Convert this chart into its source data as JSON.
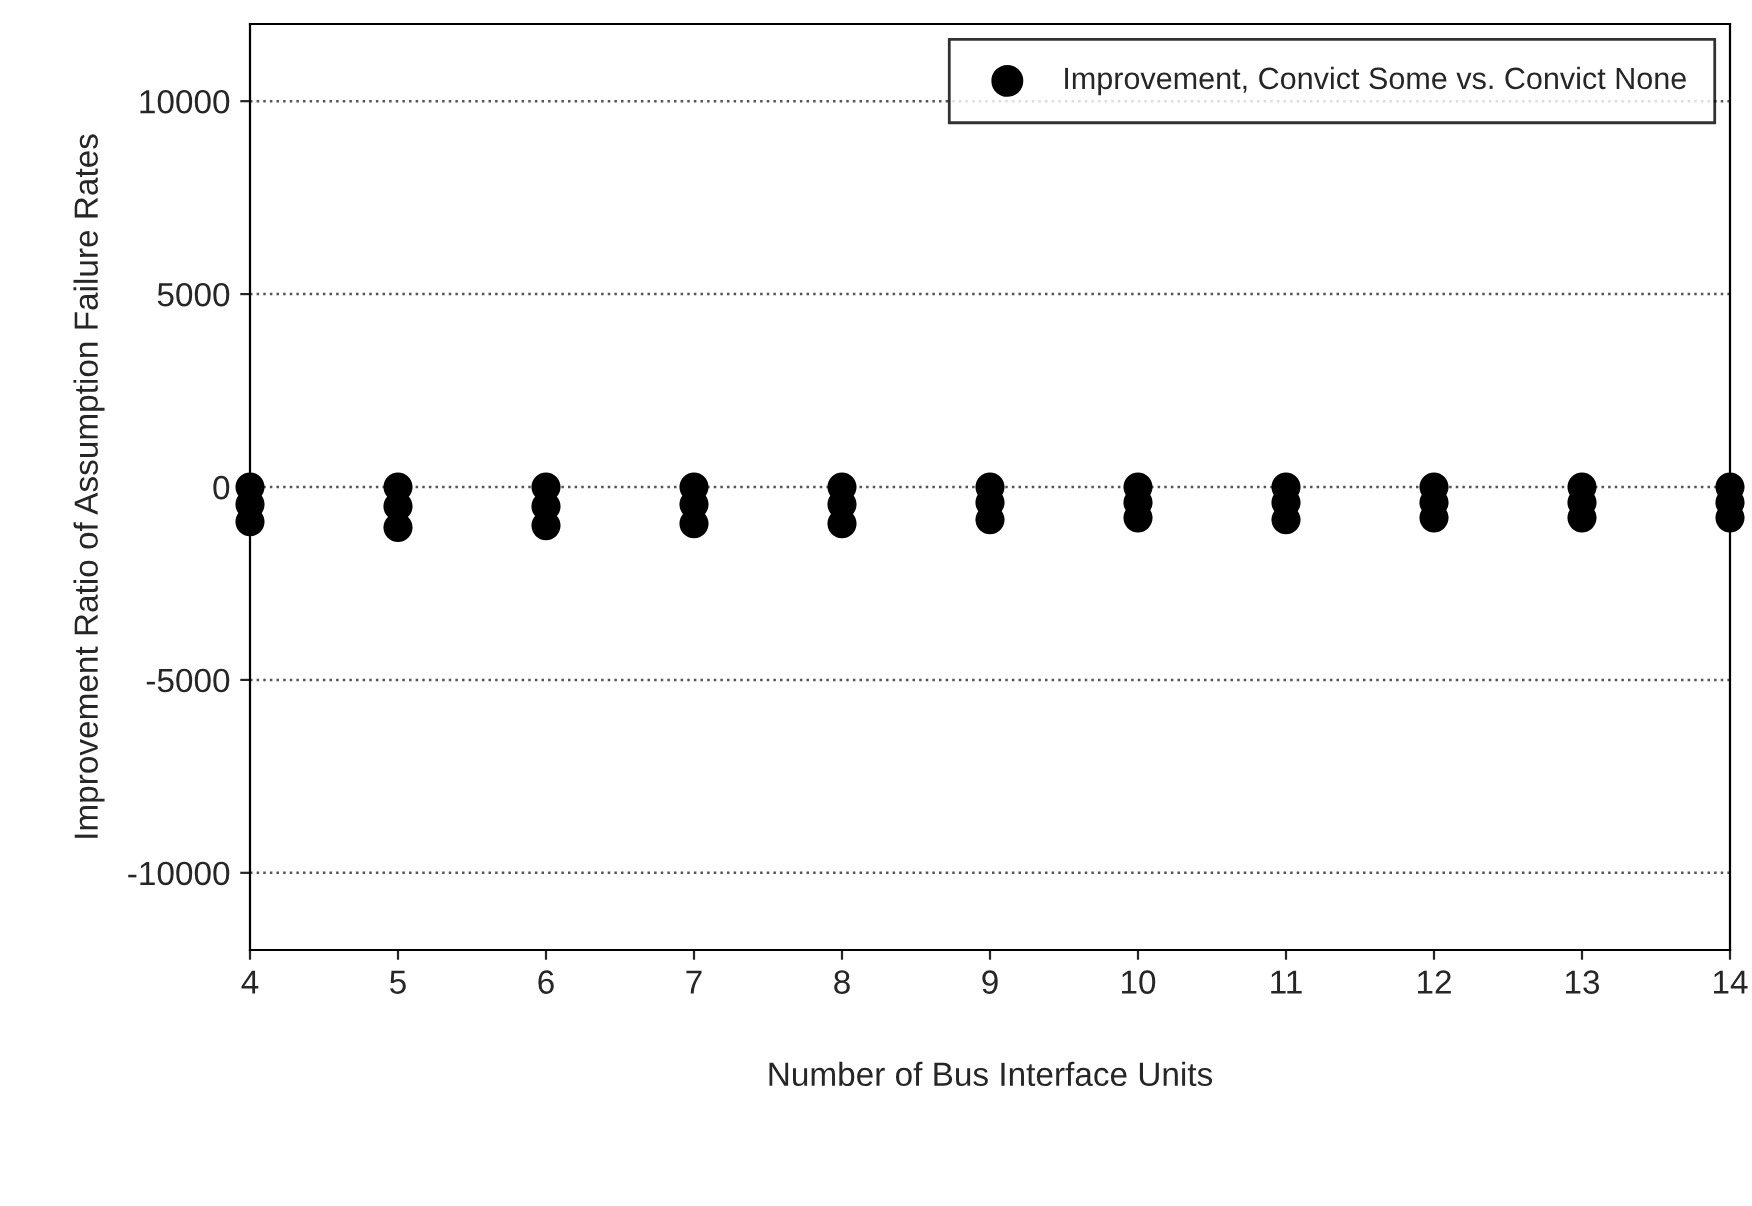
{
  "chart_data": {
    "type": "scatter",
    "xlabel": "Number of Bus Interface Units",
    "ylabel": "Improvement Ratio of Assumption Failure Rates",
    "series": [
      {
        "name": "Improvement, Convict Some vs. Convict None",
        "color": "#000000",
        "x": [
          4,
          4,
          4,
          5,
          5,
          5,
          6,
          6,
          6,
          7,
          7,
          7,
          8,
          8,
          8,
          9,
          9,
          9,
          10,
          10,
          10,
          11,
          11,
          11,
          12,
          12,
          12,
          13,
          13,
          13,
          14,
          14,
          14
        ],
        "values": [
          0,
          -450,
          -900,
          0,
          -500,
          -1050,
          0,
          -500,
          -1000,
          0,
          -450,
          -950,
          0,
          -450,
          -950,
          0,
          -400,
          -850,
          0,
          -400,
          -800,
          0,
          -400,
          -850,
          0,
          -400,
          -800,
          0,
          -400,
          -800,
          0,
          -400,
          -800
        ]
      }
    ],
    "xlim": [
      4,
      14
    ],
    "xticks": [
      4,
      5,
      6,
      7,
      8,
      9,
      10,
      11,
      12,
      13,
      14
    ],
    "ylim": [
      -12000,
      12000
    ],
    "yticks": [
      -10000,
      -5000,
      0,
      5000,
      10000
    ],
    "grid": "y",
    "legend": "top right",
    "marker": "circle"
  }
}
